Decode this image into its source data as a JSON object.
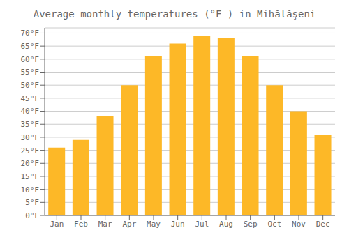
{
  "chart_data": {
    "type": "bar",
    "title": "Average monthly temperatures (°F ) in Mihălăşeni",
    "categories": [
      "Jan",
      "Feb",
      "Mar",
      "Apr",
      "May",
      "Jun",
      "Jul",
      "Aug",
      "Sep",
      "Oct",
      "Nov",
      "Dec"
    ],
    "values": [
      26,
      29,
      38,
      50,
      61,
      66,
      69,
      68,
      61,
      50,
      40,
      31
    ],
    "color": "#FDB827",
    "ylim": [
      0,
      72
    ],
    "yticks": [
      {
        "value": 0,
        "label": "0°F"
      },
      {
        "value": 5,
        "label": "5°F"
      },
      {
        "value": 10,
        "label": "10°F"
      },
      {
        "value": 15,
        "label": "15°F"
      },
      {
        "value": 20,
        "label": "20°F"
      },
      {
        "value": 25,
        "label": "25°F"
      },
      {
        "value": 30,
        "label": "30°F"
      },
      {
        "value": 35,
        "label": "35°F"
      },
      {
        "value": 40,
        "label": "40°F"
      },
      {
        "value": 45,
        "label": "45°F"
      },
      {
        "value": 50,
        "label": "50°F"
      },
      {
        "value": 55,
        "label": "55°F"
      },
      {
        "value": 60,
        "label": "60°F"
      },
      {
        "value": 65,
        "label": "65°F"
      },
      {
        "value": 70,
        "label": "70°F"
      }
    ],
    "grid": true
  }
}
